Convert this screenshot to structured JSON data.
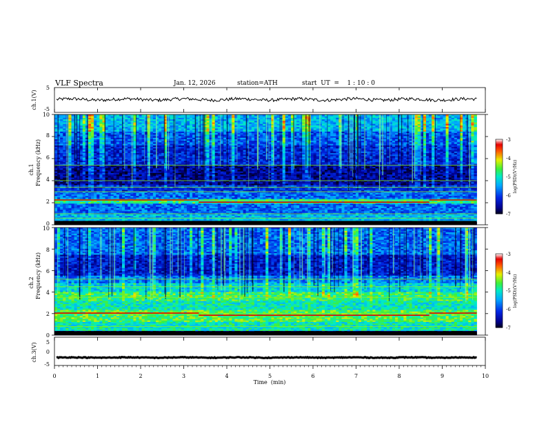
{
  "header": {
    "title": "VLF  Spectra",
    "date": "Jan. 12, 2026",
    "station": "station=ATH",
    "start_ut": "start  UT  =    1 : 10 : 0"
  },
  "chart_data": [
    {
      "type": "line",
      "panel": "ch1-waveform",
      "ylabel": "ch.1(V)",
      "xlim": [
        0,
        10
      ],
      "ylim": [
        -5,
        5
      ],
      "yticks": [
        "5",
        "-5"
      ],
      "trace": {
        "mean": 0.2,
        "amplitude_range": [
          -0.8,
          1.0
        ],
        "end_min": 9.8
      }
    },
    {
      "type": "heatmap",
      "panel": "ch1-spectrogram",
      "ylabel": "ch.1\nFrequency  (kHz)",
      "xlim": [
        0,
        10
      ],
      "ylim": [
        0,
        10
      ],
      "yticks": [
        "0",
        "2",
        "4",
        "6",
        "8",
        "10"
      ],
      "data_end_min": 9.8,
      "bands_khz": [
        {
          "from": 0.0,
          "to": 0.3,
          "level": -7
        },
        {
          "from": 0.3,
          "to": 1.0,
          "level": -5.4
        },
        {
          "from": 1.0,
          "to": 2.0,
          "level": -5.8
        },
        {
          "from": 2.0,
          "to": 2.4,
          "level": -4.8
        },
        {
          "from": 2.4,
          "to": 3.0,
          "level": -5.8
        },
        {
          "from": 3.0,
          "to": 3.6,
          "level": -6.1
        },
        {
          "from": 3.6,
          "to": 5.4,
          "level": -6.6
        },
        {
          "from": 5.4,
          "to": 7.2,
          "level": -6.2
        },
        {
          "from": 7.2,
          "to": 8.5,
          "level": -5.9
        },
        {
          "from": 8.5,
          "to": 10.0,
          "level": -5.4
        }
      ],
      "lines_khz": [
        0.6,
        1.0,
        2.2,
        3.0,
        3.4,
        4.0,
        5.4
      ],
      "shifted_line": {
        "khz_default": 2.25,
        "khz_shifted": 2.05,
        "from_min": 3.35,
        "to_min": 8.7
      },
      "colorbar": {
        "label": "log(PSD)(V²/Hz)",
        "min": -7,
        "max": -3,
        "ticks": [
          "-3",
          "-4",
          "-5",
          "-6",
          "-7"
        ]
      }
    },
    {
      "type": "heatmap",
      "panel": "ch2-spectrogram",
      "ylabel": "ch.2\nFrequency  (kHz)",
      "xlim": [
        0,
        10
      ],
      "ylim": [
        0,
        10
      ],
      "yticks": [
        "0",
        "2",
        "4",
        "6",
        "8",
        "10"
      ],
      "data_end_min": 9.8,
      "bands_khz": [
        {
          "from": 0.0,
          "to": 0.4,
          "level": -6.8
        },
        {
          "from": 0.4,
          "to": 1.2,
          "level": -5.0
        },
        {
          "from": 1.2,
          "to": 2.4,
          "level": -4.6
        },
        {
          "from": 2.4,
          "to": 3.2,
          "level": -5.0
        },
        {
          "from": 3.2,
          "to": 4.0,
          "level": -4.7
        },
        {
          "from": 4.0,
          "to": 4.8,
          "level": -5.2
        },
        {
          "from": 4.8,
          "to": 5.6,
          "level": -5.7
        },
        {
          "from": 5.6,
          "to": 7.5,
          "level": -6.3
        },
        {
          "from": 7.5,
          "to": 10.0,
          "level": -5.8
        }
      ],
      "lines_khz": [
        0.8,
        2.0,
        3.5,
        4.5,
        5.2
      ],
      "shifted_line": {
        "khz_default": 2.05,
        "khz_shifted": 1.85,
        "from_min": 3.35,
        "to_min": 8.7
      },
      "colorbar": {
        "label": "log(PSD)(V²/Hz)",
        "min": -7,
        "max": -3,
        "ticks": [
          "-3",
          "-4",
          "-5",
          "-6",
          "-7"
        ]
      }
    },
    {
      "type": "line",
      "panel": "ch3-waveform",
      "ylabel": "ch.3(V)",
      "xlim": [
        0,
        10
      ],
      "ylim": [
        -5,
        5
      ],
      "yticks": [
        "5",
        "0",
        "-5"
      ],
      "trace": {
        "mean": -2.2,
        "amplitude_range": [
          -2.4,
          -2.0
        ],
        "end_min": 9.8
      },
      "xlabel": "Time  (min)",
      "xticks": [
        "0",
        "1",
        "2",
        "3",
        "4",
        "5",
        "6",
        "7",
        "8",
        "9",
        "10"
      ]
    }
  ]
}
